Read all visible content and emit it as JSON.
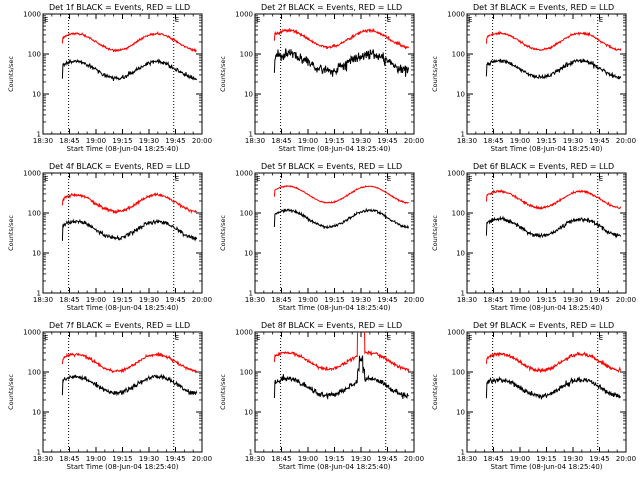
{
  "chart_data": {
    "type": "line",
    "panels": [
      {
        "title": "Det 1f BLACK = Events, RED = LLD",
        "det": 1,
        "black_level": 40,
        "red_level": 200,
        "noise_black": 0.06,
        "noise_red": 0.03,
        "spike": false
      },
      {
        "title": "Det 2f BLACK = Events, RED = LLD",
        "det": 2,
        "black_level": 62,
        "red_level": 240,
        "noise_black": 0.14,
        "noise_red": 0.04,
        "spike": false
      },
      {
        "title": "Det 3f BLACK = Events, RED = LLD",
        "det": 3,
        "black_level": 42,
        "red_level": 205,
        "noise_black": 0.06,
        "noise_red": 0.03,
        "spike": false
      },
      {
        "title": "Det 4f BLACK = Events, RED = LLD",
        "det": 4,
        "black_level": 38,
        "red_level": 175,
        "noise_black": 0.06,
        "noise_red": 0.04,
        "spike": false
      },
      {
        "title": "Det 5f BLACK = Events, RED = LLD",
        "det": 5,
        "black_level": 72,
        "red_level": 290,
        "noise_black": 0.04,
        "noise_red": 0.015,
        "spike": false
      },
      {
        "title": "Det 6f BLACK = Events, RED = LLD",
        "det": 6,
        "black_level": 44,
        "red_level": 215,
        "noise_black": 0.06,
        "noise_red": 0.03,
        "spike": false
      },
      {
        "title": "Det 7f BLACK = Events, RED = LLD",
        "det": 7,
        "black_level": 48,
        "red_level": 170,
        "noise_black": 0.06,
        "noise_red": 0.04,
        "spike": false
      },
      {
        "title": "Det 8f BLACK = Events, RED = LLD",
        "det": 8,
        "black_level": 42,
        "red_level": 190,
        "noise_black": 0.08,
        "noise_red": 0.05,
        "spike": true
      },
      {
        "title": "Det 9f BLACK = Events, RED = LLD",
        "det": 9,
        "black_level": 40,
        "red_level": 175,
        "noise_black": 0.07,
        "noise_red": 0.05,
        "spike": false
      }
    ],
    "x_tick_labels": [
      "18:30",
      "18:45",
      "19:00",
      "19:15",
      "19:30",
      "19:45",
      "20:00"
    ],
    "x_ticks_minutes": [
      0,
      15,
      30,
      45,
      60,
      75,
      90
    ],
    "xlim_minutes": [
      0,
      90
    ],
    "xlabel": "Start Time (08-Jun-04 18:25:40)",
    "ylabel": "Counts/sec",
    "y_tick_labels": [
      "1",
      "10",
      "100",
      "1000"
    ],
    "ylim": [
      1,
      1000
    ],
    "yscale": "log",
    "data_start_minutes": 11,
    "data_end_minutes": 87,
    "dotted_lines_minutes": [
      14.5,
      74
    ],
    "markers": [
      {
        "label": "E",
        "minutes": 0
      },
      {
        "label": "E",
        "minutes": 74
      }
    ],
    "series_colors": {
      "events": "#000000",
      "lld": "#ff0000"
    },
    "legend": "in title"
  }
}
